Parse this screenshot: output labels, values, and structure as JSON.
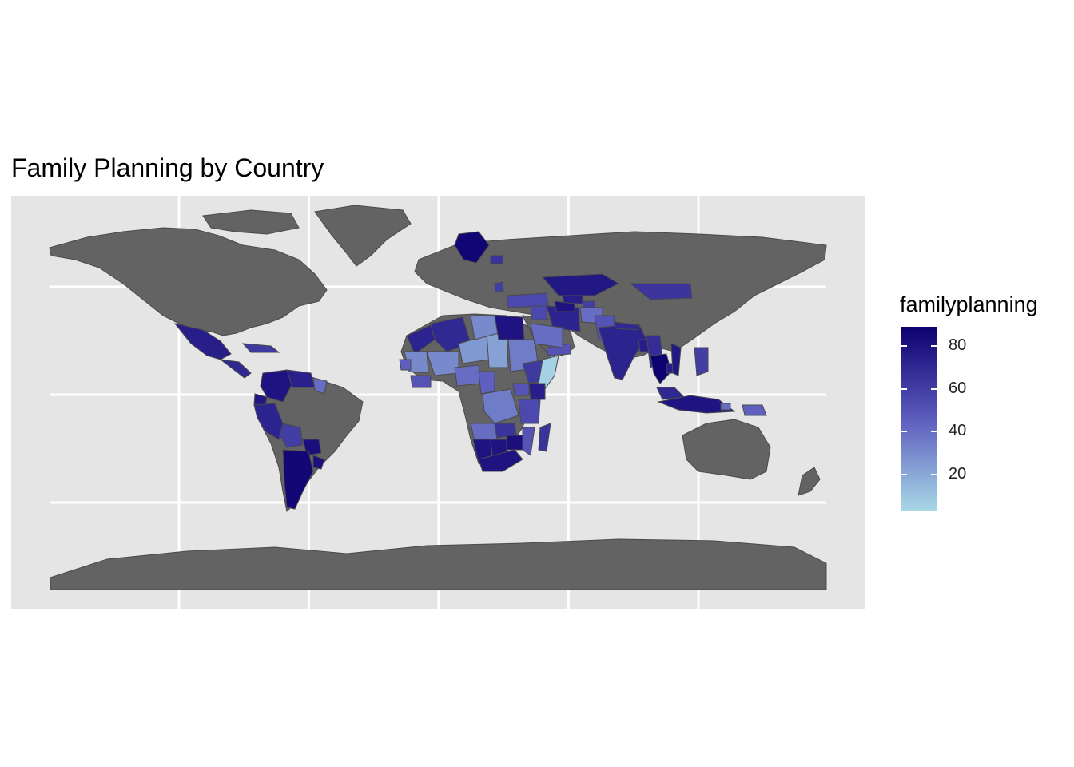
{
  "title": "Family Planning by Country",
  "colors": {
    "panel_bg": "#e5e5e5",
    "grid": "#ffffff",
    "missing": "#636363",
    "border": "#4a4a4a",
    "scale_low": "#a8d8e6",
    "scale_mid": "#5c5cbd",
    "scale_high": "#0d0070"
  },
  "legend": {
    "title": "familyplanning",
    "min": 3,
    "max": 89,
    "ticks": [
      {
        "value": 80,
        "label": "80"
      },
      {
        "value": 60,
        "label": "60"
      },
      {
        "value": 40,
        "label": "40"
      },
      {
        "value": 20,
        "label": "20"
      }
    ]
  },
  "map": {
    "gridlines_x_lon": [
      -120,
      -60,
      0,
      60,
      120
    ],
    "gridlines_y_lat": [
      50,
      0,
      -50
    ],
    "regions_with_data": [
      {
        "name": "Mexico",
        "value": 75
      },
      {
        "name": "Central America",
        "value": 70
      },
      {
        "name": "Caribbean",
        "value": 62
      },
      {
        "name": "Colombia",
        "value": 80
      },
      {
        "name": "Venezuela",
        "value": 74
      },
      {
        "name": "Guyana",
        "value": 40
      },
      {
        "name": "Ecuador",
        "value": 78
      },
      {
        "name": "Peru",
        "value": 72
      },
      {
        "name": "Bolivia",
        "value": 60
      },
      {
        "name": "Paraguay",
        "value": 82
      },
      {
        "name": "Argentina",
        "value": 86
      },
      {
        "name": "Uruguay",
        "value": 82
      },
      {
        "name": "Sweden",
        "value": 87
      },
      {
        "name": "Latvia",
        "value": 65
      },
      {
        "name": "Moldova",
        "value": 60
      },
      {
        "name": "Turkey",
        "value": 55
      },
      {
        "name": "Morocco",
        "value": 72
      },
      {
        "name": "Algeria",
        "value": 70
      },
      {
        "name": "Mauritania",
        "value": 30
      },
      {
        "name": "Mali",
        "value": 30
      },
      {
        "name": "Niger",
        "value": 25
      },
      {
        "name": "Chad",
        "value": 22
      },
      {
        "name": "Libya",
        "value": 30
      },
      {
        "name": "Egypt",
        "value": 80
      },
      {
        "name": "Sudan",
        "value": 35
      },
      {
        "name": "Senegal",
        "value": 45
      },
      {
        "name": "Guinea",
        "value": 50
      },
      {
        "name": "Nigeria",
        "value": 40
      },
      {
        "name": "Cameroon",
        "value": 45
      },
      {
        "name": "Ethiopia",
        "value": 62
      },
      {
        "name": "Somalia",
        "value": 5
      },
      {
        "name": "Yemen",
        "value": 50
      },
      {
        "name": "Iraq",
        "value": 55
      },
      {
        "name": "Iran",
        "value": 72
      },
      {
        "name": "Saudi Arabia",
        "value": 40
      },
      {
        "name": "Kazakhstan",
        "value": 78
      },
      {
        "name": "Uzbekistan",
        "value": 75
      },
      {
        "name": "Turkmenistan",
        "value": 80
      },
      {
        "name": "Tajikistan",
        "value": 60
      },
      {
        "name": "Afghanistan",
        "value": 40
      },
      {
        "name": "Pakistan",
        "value": 50
      },
      {
        "name": "Mongolia",
        "value": 64
      },
      {
        "name": "India",
        "value": 72
      },
      {
        "name": "Bangladesh",
        "value": 75
      },
      {
        "name": "Nepal",
        "value": 70
      },
      {
        "name": "Myanmar",
        "value": 68
      },
      {
        "name": "Thailand",
        "value": 89
      },
      {
        "name": "Cambodia",
        "value": 75
      },
      {
        "name": "Vietnam",
        "value": 78
      },
      {
        "name": "Philippines",
        "value": 60
      },
      {
        "name": "Malaysia",
        "value": 70
      },
      {
        "name": "Indonesia",
        "value": 79
      },
      {
        "name": "Timor-Leste",
        "value": 40
      },
      {
        "name": "Papua New Guinea",
        "value": 45
      },
      {
        "name": "DR Congo",
        "value": 35
      },
      {
        "name": "Angola",
        "value": 40
      },
      {
        "name": "Namibia",
        "value": 80
      },
      {
        "name": "Botswana",
        "value": 80
      },
      {
        "name": "Zambia",
        "value": 65
      },
      {
        "name": "Zimbabwe",
        "value": 82
      },
      {
        "name": "Mozambique",
        "value": 50
      },
      {
        "name": "Kenya",
        "value": 75
      },
      {
        "name": "Tanzania",
        "value": 55
      },
      {
        "name": "Uganda",
        "value": 50
      },
      {
        "name": "Madagascar",
        "value": 65
      },
      {
        "name": "South Africa",
        "value": 80
      }
    ]
  }
}
